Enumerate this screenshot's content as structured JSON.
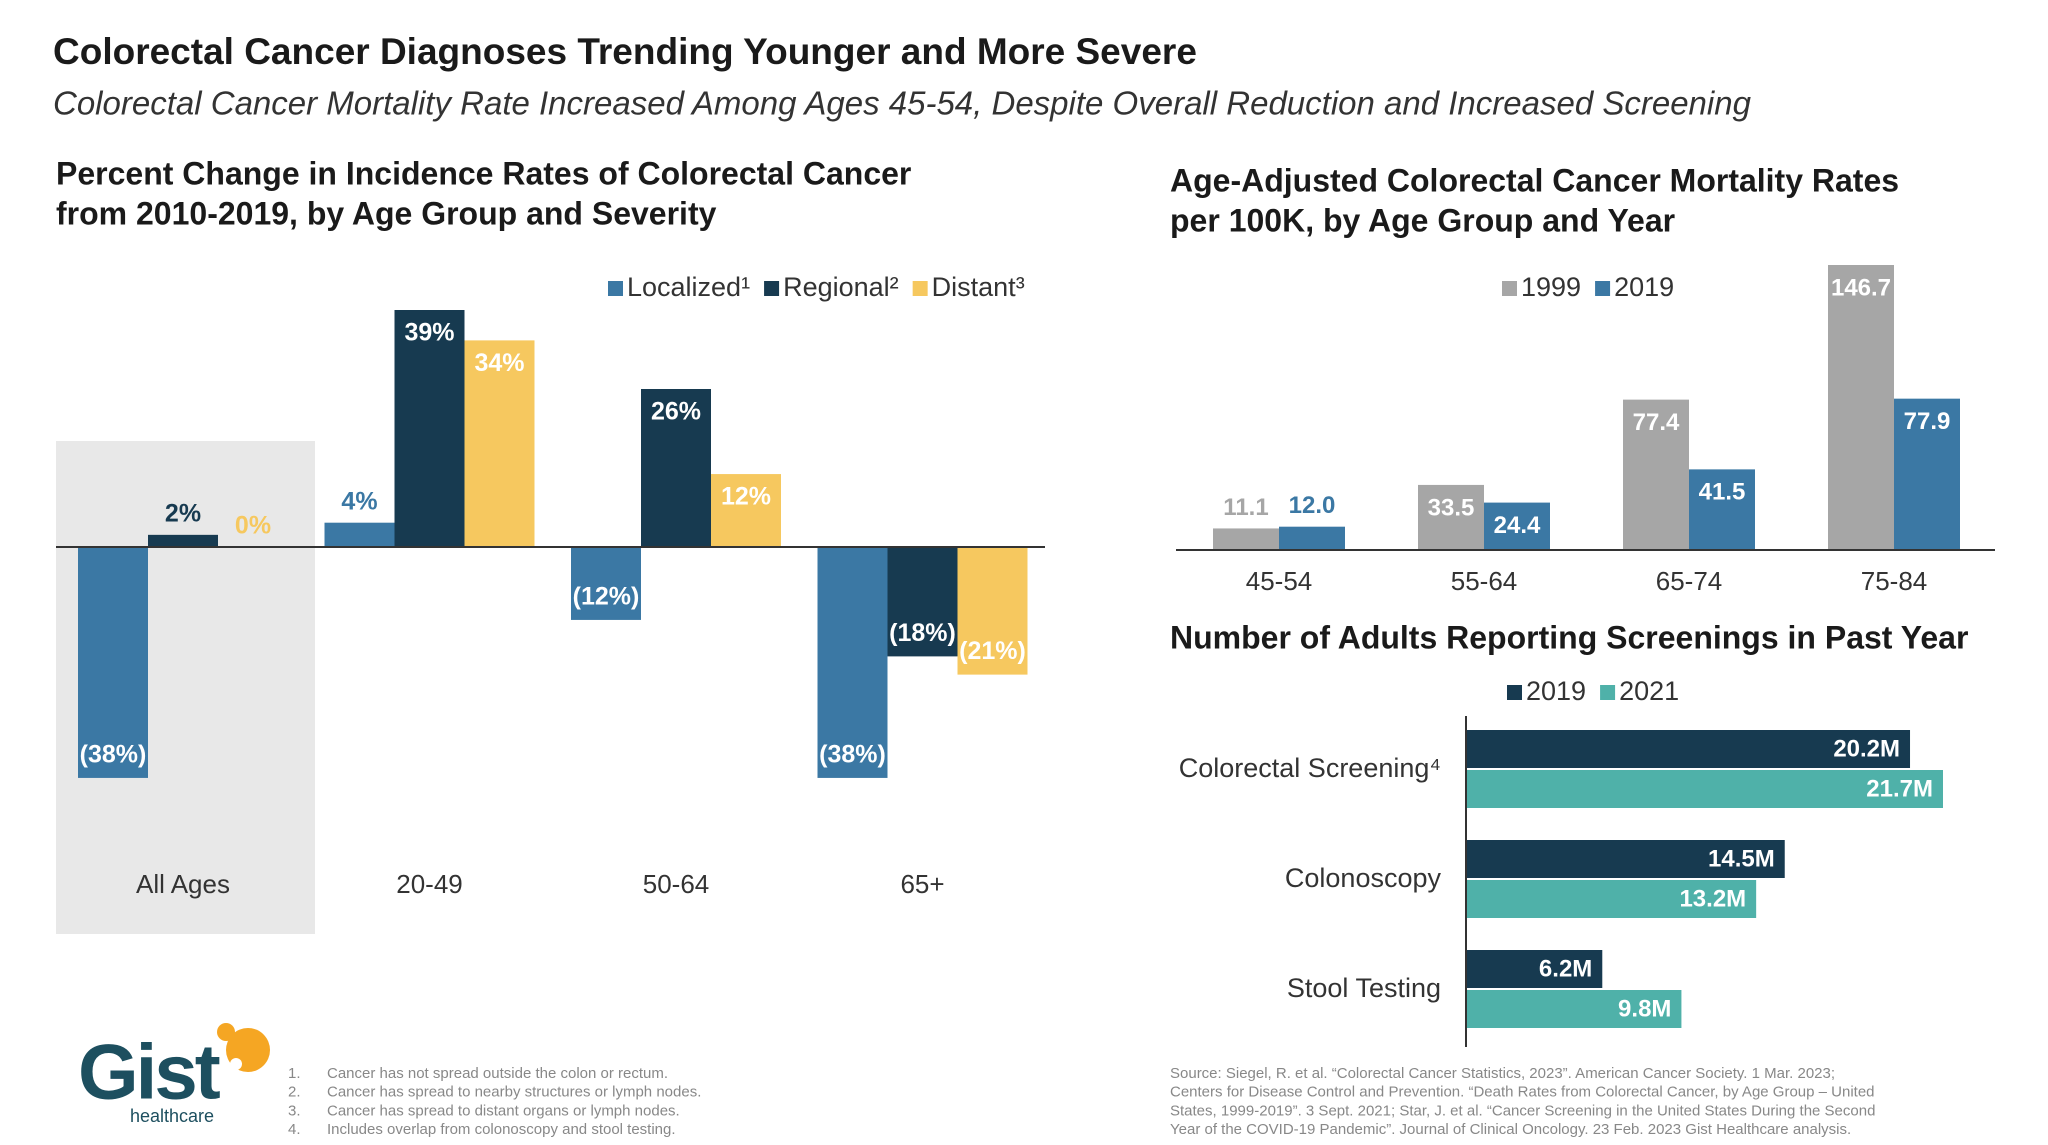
{
  "header": {
    "title": "Colorectal Cancer Diagnoses Trending Younger and More Severe",
    "subtitle": "Colorectal Cancer Mortality Rate Increased Among Ages 45-54, Despite Overall Reduction and Increased Screening"
  },
  "chart_data": [
    {
      "type": "bar",
      "orientation": "vertical",
      "title": [
        "Percent Change in Incidence Rates of Colorectal Cancer",
        "from 2010-2019, by Age Group and Severity"
      ],
      "categories": [
        "All Ages",
        "20-49",
        "50-64",
        "65+"
      ],
      "series": [
        {
          "name": "Localized¹",
          "color": "#3b78a4",
          "values": [
            -38,
            4,
            -12,
            -38
          ],
          "value_labels": [
            "(38%)",
            "4%",
            "(12%)",
            "(38%)"
          ]
        },
        {
          "name": "Regional²",
          "color": "#173a50",
          "values": [
            2,
            39,
            26,
            -18
          ],
          "value_labels": [
            "2%",
            "39%",
            "26%",
            "(18%)"
          ]
        },
        {
          "name": "Distant³",
          "color": "#f6c85f",
          "values": [
            0,
            34,
            12,
            -21
          ],
          "value_labels": [
            "0%",
            "34%",
            "12%",
            "(21%)"
          ]
        }
      ]
    },
    {
      "type": "bar",
      "orientation": "vertical",
      "title": [
        "Age-Adjusted Colorectal Cancer Mortality Rates",
        "per 100K, by Age Group and Year"
      ],
      "categories": [
        "45-54",
        "55-64",
        "65-74",
        "75-84"
      ],
      "series": [
        {
          "name": "1999",
          "color": "#a6a6a6",
          "values": [
            11.1,
            33.5,
            77.4,
            146.7
          ],
          "value_labels": [
            "11.1",
            "33.5",
            "77.4",
            "146.7"
          ]
        },
        {
          "name": "2019",
          "color": "#3b78a4",
          "values": [
            12,
            24.4,
            41.5,
            77.9
          ],
          "value_labels": [
            "12.0",
            "24.4",
            "41.5",
            "77.9"
          ]
        }
      ]
    },
    {
      "type": "bar",
      "orientation": "horizontal",
      "title": [
        "Number of Adults Reporting Screenings in Past Year"
      ],
      "categories": [
        "Colorectal Screening⁴",
        "Colonoscopy",
        "Stool Testing"
      ],
      "series": [
        {
          "name": "2019",
          "color": "#173a50",
          "values": [
            20.2,
            14.5,
            6.2
          ],
          "value_labels": [
            "20.2M",
            "14.5M",
            "6.2M"
          ]
        },
        {
          "name": "2021",
          "color": "#4fb1a9",
          "values": [
            21.7,
            13.2,
            9.8
          ],
          "value_labels": [
            "21.7M",
            "13.2M",
            "9.8M"
          ]
        }
      ]
    }
  ],
  "logo": {
    "name": "Gist",
    "tagline": "healthcare"
  },
  "footnotes": [
    {
      "number": "1.",
      "text": "Cancer has not spread outside the colon or rectum."
    },
    {
      "number": "2.",
      "text": "Cancer has spread to nearby structures or lymph nodes."
    },
    {
      "number": "3.",
      "text": "Cancer has spread to distant organs or lymph nodes."
    },
    {
      "number": "4.",
      "text": "Includes overlap from colonoscopy and stool testing."
    }
  ],
  "source": [
    "Source: Siegel, R. et al. “Colorectal Cancer Statistics, 2023”. American Cancer Society. 1 Mar. 2023;",
    "Centers for Disease Control and Prevention. “Death Rates from Colorectal Cancer, by Age Group – United",
    "States, 1999-2019”. 3 Sept. 2021; Star, J. et al. “Cancer Screening in the United States During the Second",
    "Year of the COVID-19 Pandemic”. Journal of Clinical Oncology. 23 Feb. 2023 Gist Healthcare analysis."
  ]
}
